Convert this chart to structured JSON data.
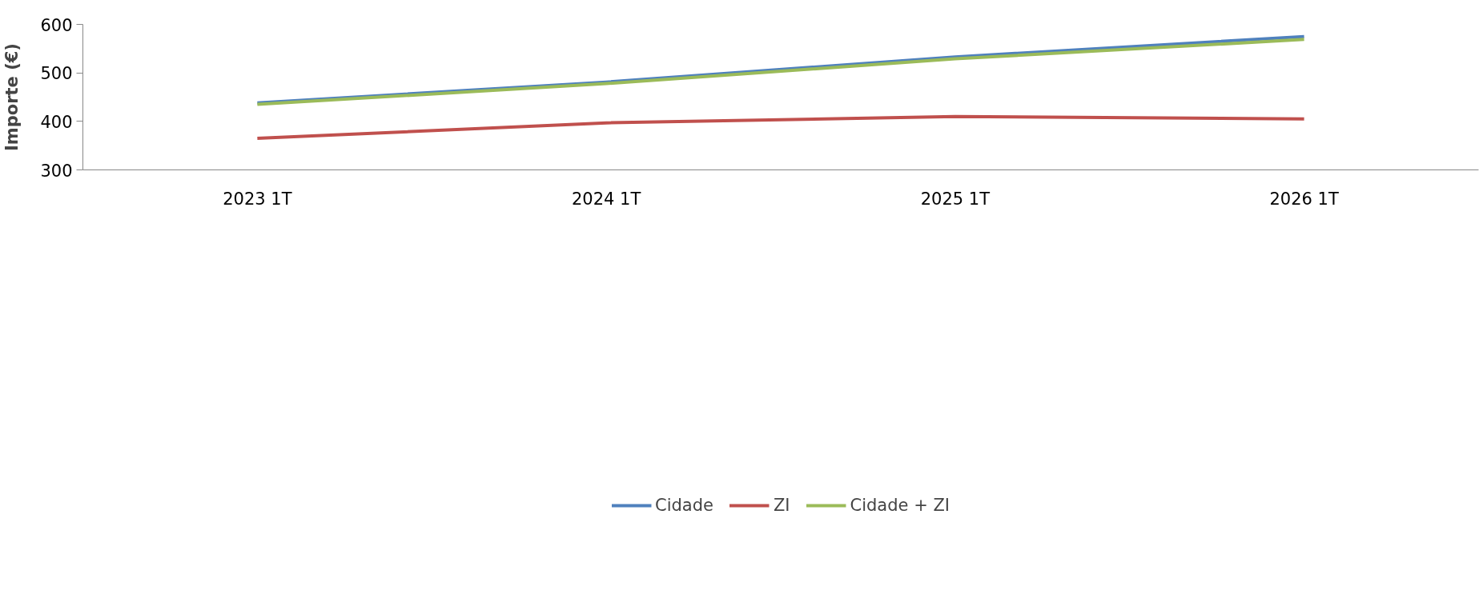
{
  "chart_data": {
    "type": "line",
    "ylabel": "Importe (€)",
    "categories": [
      "2023 1T",
      "2024 1T",
      "2025 1T",
      "2026 1T"
    ],
    "series": [
      {
        "name": "Cidade",
        "color": "#4f81bd",
        "values": [
          438,
          481,
          533,
          575
        ]
      },
      {
        "name": "ZI",
        "color": "#c0504d",
        "values": [
          365,
          397,
          410,
          405
        ]
      },
      {
        "name": "Cidade + ZI",
        "color": "#9bbb59",
        "values": [
          435,
          478,
          529,
          569
        ]
      }
    ],
    "ylim": [
      300,
      600
    ],
    "yticks": [
      300,
      400,
      500,
      600
    ],
    "grid": false,
    "legend": "bottom",
    "marker": "none",
    "line_style": "solid"
  }
}
